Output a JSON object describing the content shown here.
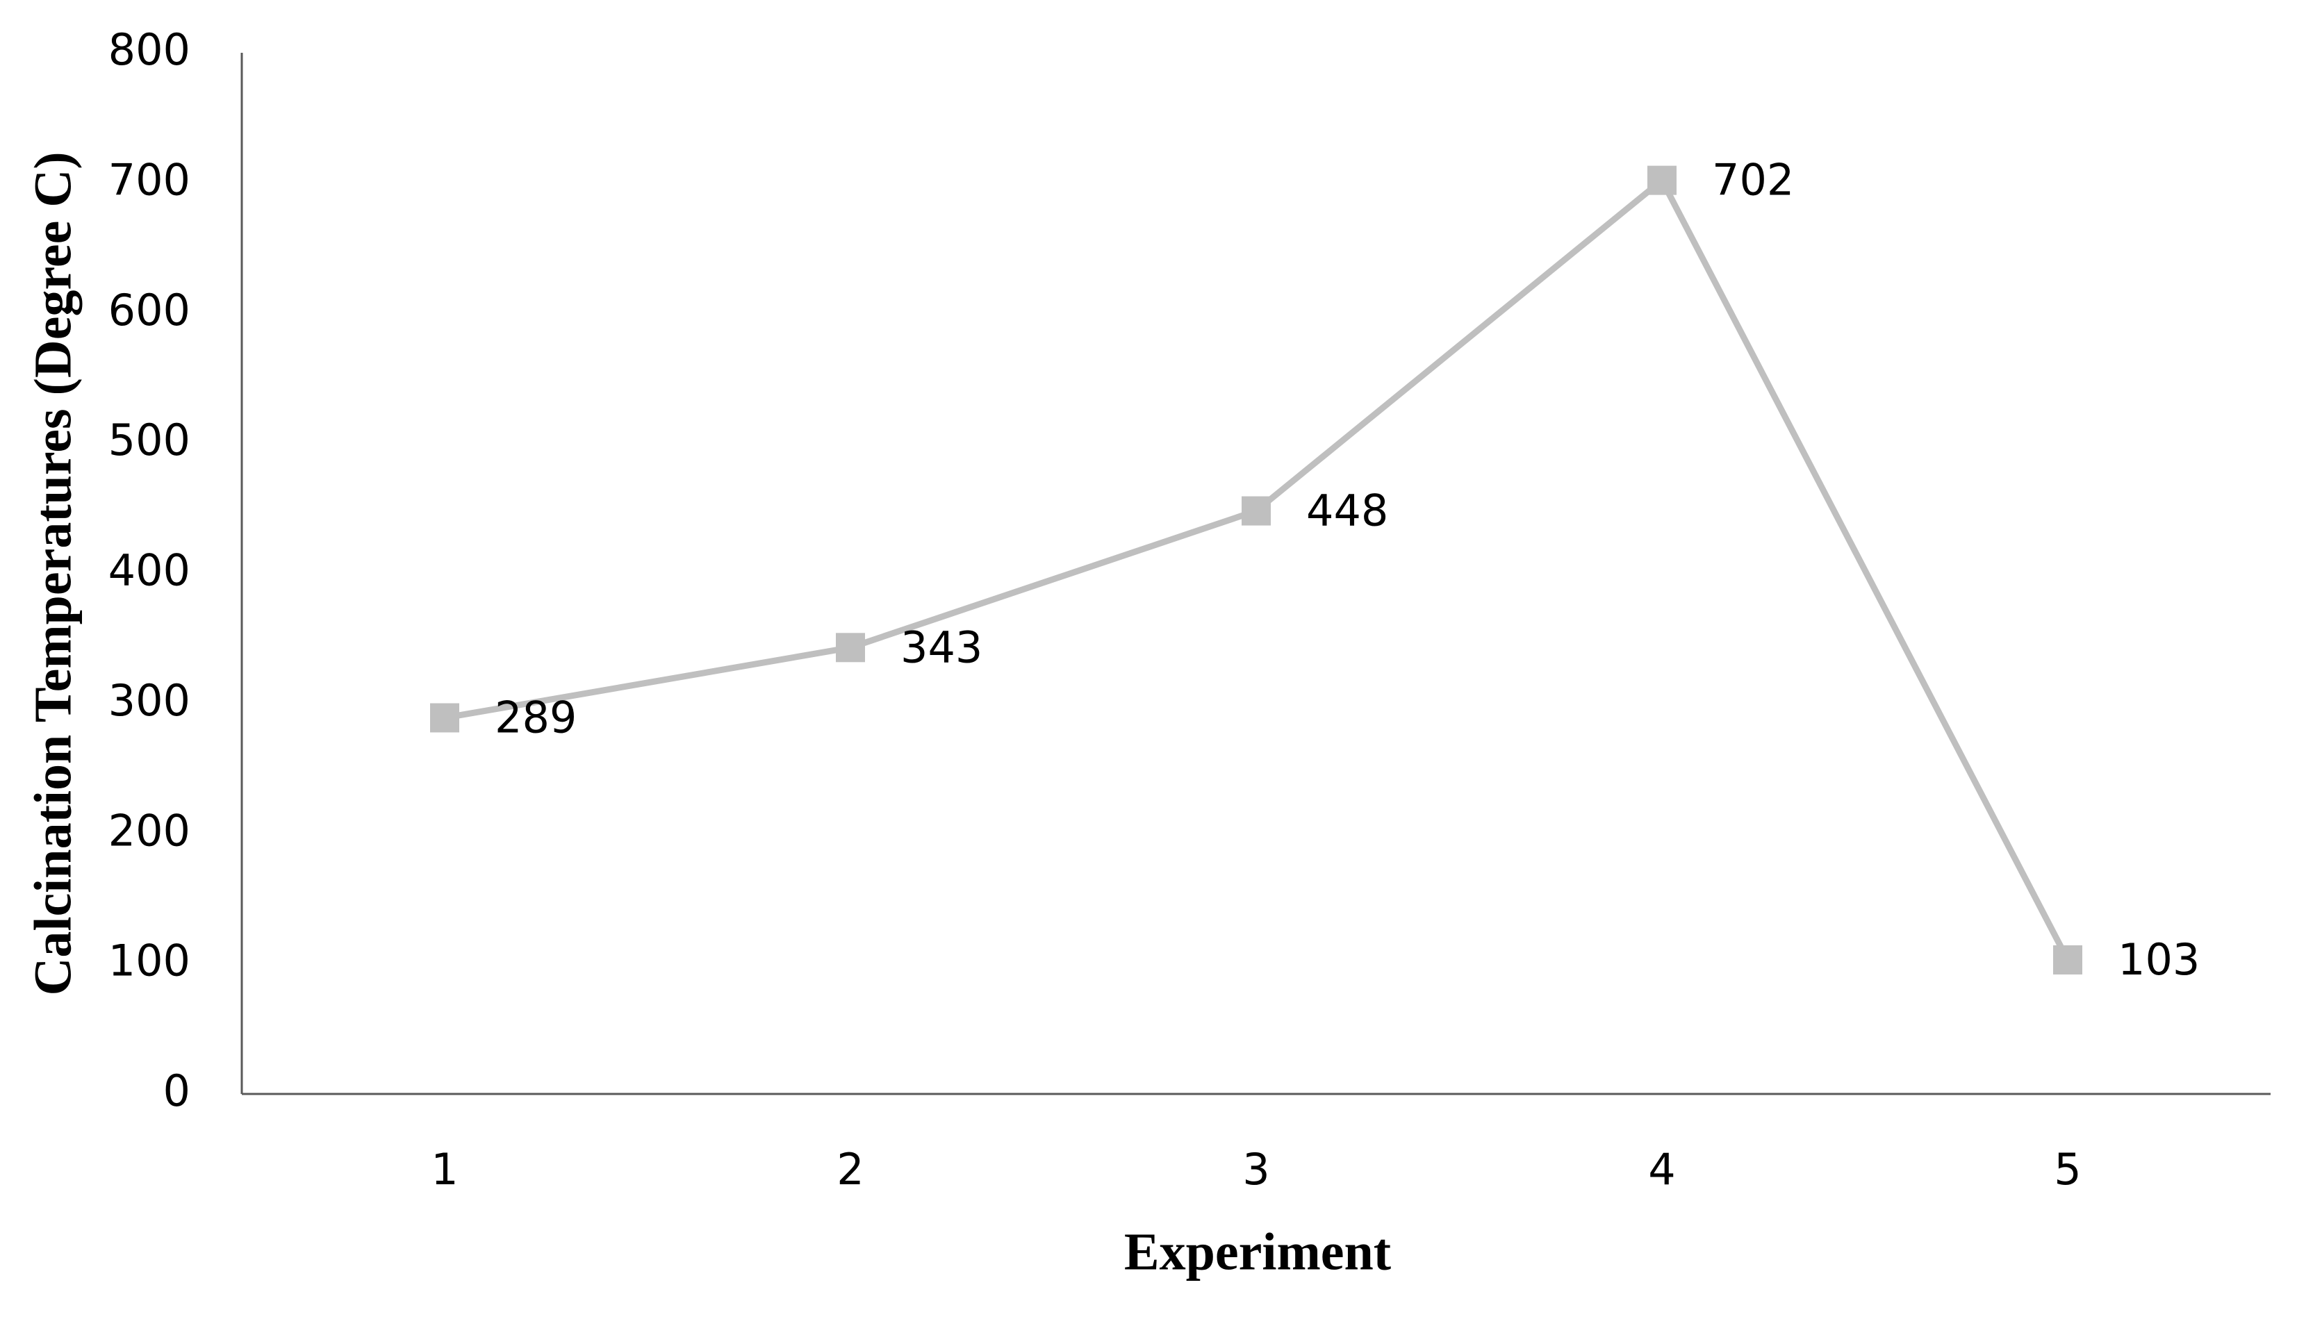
{
  "chart_data": {
    "type": "line",
    "x_label": "Experiment",
    "y_label": "Calcination Temperatures (Degree C)",
    "categories": [
      "1",
      "2",
      "3",
      "4",
      "5"
    ],
    "values": [
      289,
      343,
      448,
      702,
      103
    ],
    "color": "#bfbfbf",
    "ylim": [
      0,
      800
    ],
    "yticks": [
      0,
      100,
      200,
      300,
      400,
      500,
      600,
      700,
      800
    ],
    "grid": false
  }
}
